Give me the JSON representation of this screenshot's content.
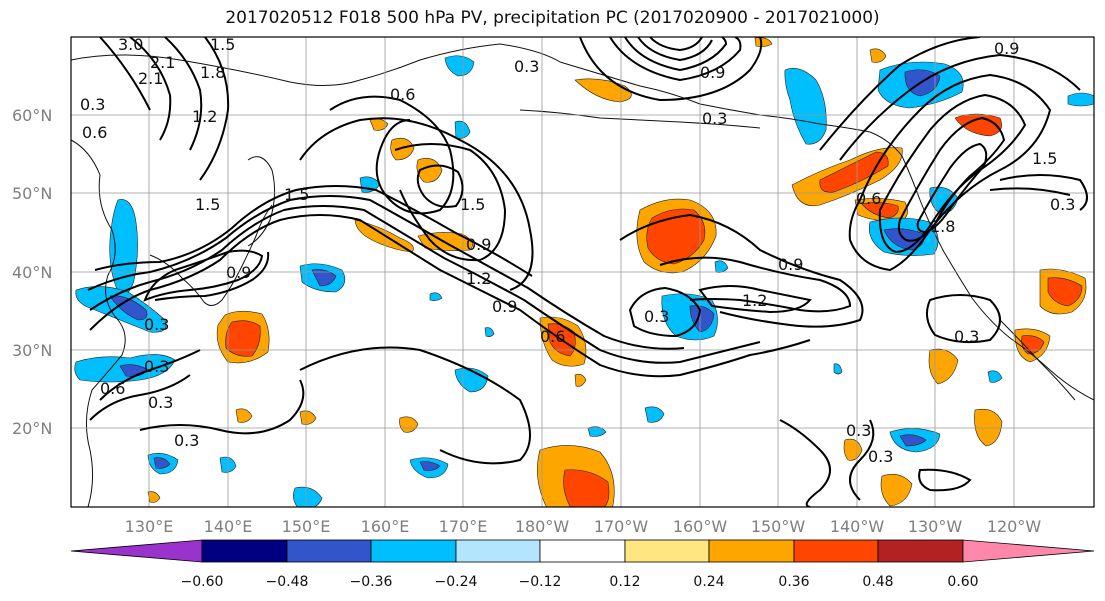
{
  "title": "2017020512 F018 500 hPa PV, precipitation PC (2017020900 - 2017021000)",
  "lat_labels": [
    "60°N",
    "50°N",
    "40°N",
    "30°N",
    "20°N"
  ],
  "lon_labels": [
    "130°E",
    "140°E",
    "150°E",
    "160°E",
    "170°E",
    "180°W",
    "170°W",
    "160°W",
    "150°W",
    "140°W",
    "130°W",
    "120°W"
  ],
  "contour_labels": [
    "3.0",
    "2.1",
    "1.8",
    "1.5",
    "0.3",
    "0.6",
    "1.2",
    "0.3",
    "0.6",
    "0.9",
    "0.3",
    "0.9",
    "1.5",
    "1.5",
    "1.5",
    "1.5",
    "0.9",
    "1.2",
    "0.9",
    "0.9",
    "1.2",
    "0.3",
    "0.6",
    "0.3",
    "0.3",
    "0.3",
    "0.3",
    "0.3",
    "1.8",
    "0.6",
    "0.3",
    "0.3",
    "0.6",
    "0.9",
    "0.3",
    "2.1"
  ],
  "colorbar": {
    "tick_labels": [
      "−0.60",
      "−0.48",
      "−0.36",
      "−0.24",
      "−0.12",
      "0.12",
      "0.24",
      "0.36",
      "0.48",
      "0.60"
    ],
    "colors": [
      "#9933cc",
      "#000080",
      "#3355cc",
      "#00bfff",
      "#b3e5ff",
      "#ffffff",
      "#ffe680",
      "#ffa500",
      "#ff4500",
      "#b22222",
      "#ff88aa"
    ]
  }
}
